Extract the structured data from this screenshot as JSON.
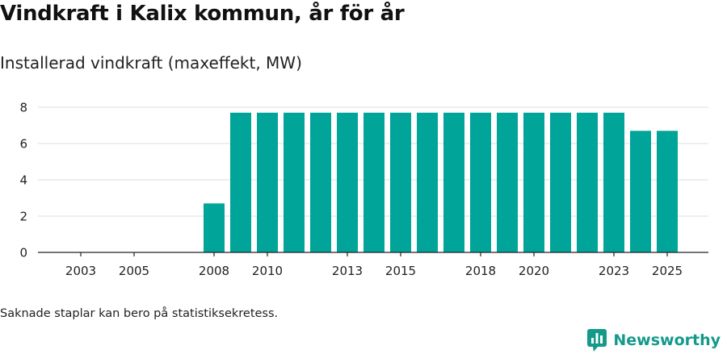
{
  "title": "Vindkraft i Kalix kommun, år för år",
  "subtitle": "Installerad vindkraft (maxeffekt, MW)",
  "note": "Saknade staplar kan bero på statistiksekretess.",
  "brand": {
    "name": "Newsworthy",
    "logo_icon": "bar-chart-speech-bubble-icon"
  },
  "colors": {
    "bar": "#00a499",
    "brand": "#139a8b",
    "grid": "#dddddd",
    "axis": "#222222"
  },
  "chart_data": {
    "type": "bar",
    "title": "Vindkraft i Kalix kommun, år för år",
    "ylabel": "Installerad vindkraft (maxeffekt, MW)",
    "xlabel": "",
    "ylim": [
      0,
      8
    ],
    "yticks": [
      0,
      2,
      4,
      6,
      8
    ],
    "grid": true,
    "categories": [
      2003,
      2004,
      2005,
      2006,
      2007,
      2008,
      2009,
      2010,
      2011,
      2012,
      2013,
      2014,
      2015,
      2016,
      2017,
      2018,
      2019,
      2020,
      2021,
      2022,
      2023,
      2024,
      2025
    ],
    "values": [
      null,
      null,
      null,
      null,
      null,
      2.7,
      7.7,
      7.7,
      7.7,
      7.7,
      7.7,
      7.7,
      7.7,
      7.7,
      7.7,
      7.7,
      7.7,
      7.7,
      7.7,
      7.7,
      7.7,
      6.7,
      6.7
    ],
    "xtick_labels": [
      "2003",
      "2005",
      "2008",
      "2010",
      "2013",
      "2015",
      "2018",
      "2020",
      "2023",
      "2025"
    ]
  }
}
